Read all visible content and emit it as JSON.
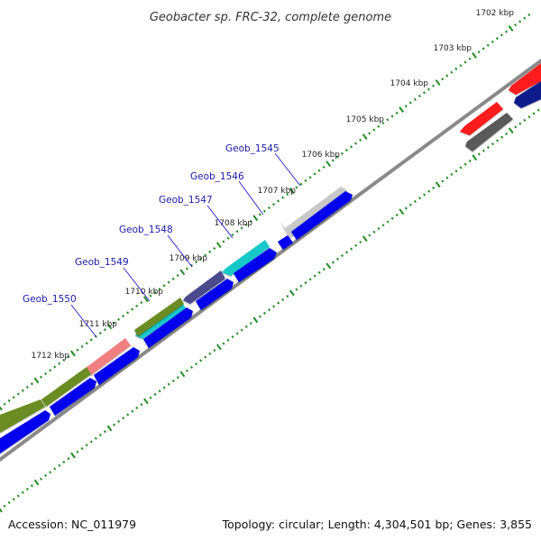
{
  "title": "Geobacter sp. FRC-32, complete genome",
  "kbp_labels": [
    "1702 kbp",
    "1703 kbp",
    "1704 kbp",
    "1705 kbp",
    "1706 kbp",
    "1707 kbp",
    "1708 kbp",
    "1709 kbp",
    "1710 kbp",
    "1711 kbp",
    "1712 kbp"
  ],
  "gene_labels": [
    "Geob_1545",
    "Geob_1546",
    "Geob_1547",
    "Geob_1548",
    "Geob_1549",
    "Geob_1550"
  ],
  "colors": {
    "forward_cds": "#0000ee",
    "backbone": "#8a8a8a",
    "ticks": "#228b22",
    "label_text": "#1a1aa8",
    "gene_red": "#ff1a1a",
    "gene_dark_gray": "#5a5a5a",
    "gene_light_gray": "#c8c8c8",
    "gene_cyan": "#18c8c8",
    "gene_slate": "#4a4a8c",
    "gene_olive": "#6b8c22",
    "gene_salmon": "#f08080",
    "gene_navy": "#0a1a8a"
  },
  "footer": {
    "accession": "Accession: NC_011979",
    "stats": "Topology: circular; Length: 4,304,501 bp; Genes: 3,855"
  }
}
